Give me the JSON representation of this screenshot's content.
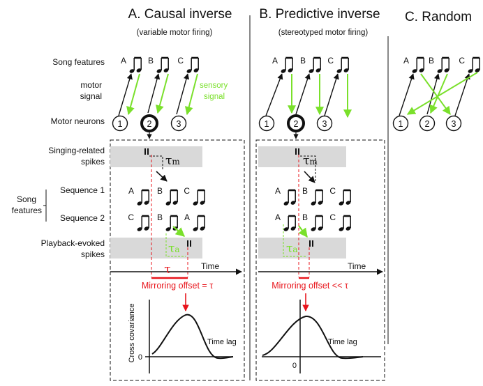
{
  "panels": {
    "A": {
      "title": "A. Causal inverse",
      "subtitle": "(variable motor firing)"
    },
    "B": {
      "title": "B. Predictive inverse",
      "subtitle": "(stereotyped motor firing)"
    },
    "C": {
      "title": "C. Random"
    }
  },
  "row_labels": {
    "song_features": "Song features",
    "motor_neurons": "Motor neurons",
    "singing_spikes_1": "Singing-related",
    "singing_spikes_2": "spikes",
    "song_1": "Song",
    "song_2": "features",
    "sequence_1": "Sequence 1",
    "sequence_2": "Sequence 2",
    "playback_1": "Playback-evoked",
    "playback_2": "spikes"
  },
  "signals": {
    "motor_1": "motor",
    "motor_2": "signal",
    "sensory_1": "sensory",
    "sensory_2": "signal"
  },
  "notes": [
    "A",
    "B",
    "C"
  ],
  "neurons": [
    "1",
    "2",
    "3"
  ],
  "sequence_1": [
    "A",
    "B",
    "C"
  ],
  "sequence_2": [
    "C",
    "B",
    "A"
  ],
  "tau_m": "τm",
  "tau_a": "τa",
  "tau": "τ",
  "time_label": "Time",
  "mirroring_A": "Mirroring offset = τ",
  "mirroring_B": "Mirroring offset << τ",
  "cross_cov": "Cross covariance",
  "time_lag": "Time lag",
  "zero": "0",
  "colors": {
    "green": "#7ae02b",
    "red": "#e8141b",
    "shade": "#d9d9d9",
    "black": "#111111"
  }
}
